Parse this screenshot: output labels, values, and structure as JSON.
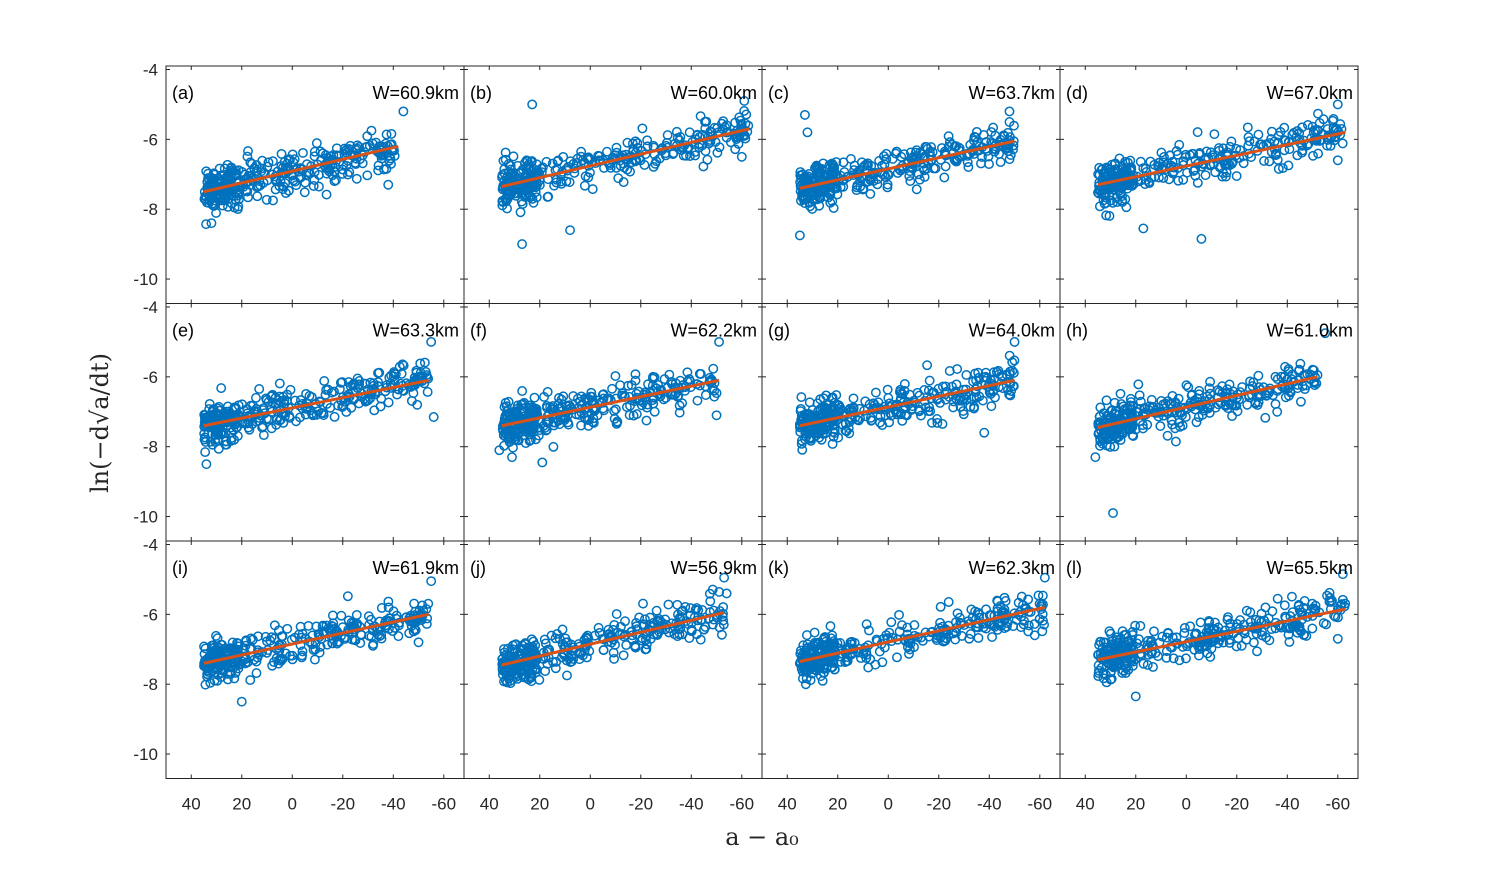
{
  "figure": {
    "ylabel": "ln(−d√a/dt)",
    "xlabel": "a − a₀",
    "colors": {
      "marker": "#0072BD",
      "fit": "#D95319",
      "axes": "#262626"
    }
  },
  "chart_data": {
    "type": "scatter",
    "layout": "3 rows x 4 columns of panels sharing axes",
    "xlim": [
      50,
      -68
    ],
    "xdir": "reverse",
    "ylim": [
      -10.7,
      -3.9
    ],
    "xticks": [
      40,
      20,
      0,
      -20,
      -40,
      -60
    ],
    "xtick_labels": [
      "40",
      "20",
      "0",
      "-20",
      "-40",
      "-60"
    ],
    "yticks": [
      -4,
      -6,
      -8,
      -10
    ],
    "ytick_labels": [
      "-4",
      "-6",
      "-8",
      "-10"
    ],
    "xlabel": "a − a₀",
    "ylabel": "ln(−d√a/dt)",
    "marker": "open circle",
    "grid": false,
    "panels": [
      {
        "label": "(a)",
        "width_label": "W=60.9km",
        "x_range": [
          35,
          -42
        ],
        "fit": [
          [
            35,
            -7.5
          ],
          [
            -42,
            -6.2
          ]
        ],
        "outliers": [
          [
            32,
            -8.4
          ],
          [
            -44,
            -5.2
          ],
          [
            -38,
            -7.3
          ]
        ]
      },
      {
        "label": "(b)",
        "width_label": "W=60.0km",
        "x_range": [
          35,
          -63
        ],
        "fit": [
          [
            35,
            -7.35
          ],
          [
            -63,
            -5.7
          ]
        ],
        "outliers": [
          [
            23,
            -5.0
          ],
          [
            27,
            -9.0
          ],
          [
            8,
            -8.6
          ],
          [
            -61,
            -4.9
          ],
          [
            -60,
            -6.5
          ]
        ]
      },
      {
        "label": "(c)",
        "width_label": "W=63.7km",
        "x_range": [
          35,
          -50
        ],
        "fit": [
          [
            35,
            -7.4
          ],
          [
            -50,
            -6.05
          ]
        ],
        "outliers": [
          [
            35,
            -8.75
          ],
          [
            33,
            -5.3
          ],
          [
            32,
            -5.8
          ],
          [
            -48,
            -5.2
          ]
        ]
      },
      {
        "label": "(d)",
        "width_label": "W=67.0km",
        "x_range": [
          35,
          -63
        ],
        "fit": [
          [
            35,
            -7.3
          ],
          [
            -63,
            -5.8
          ]
        ],
        "outliers": [
          [
            17,
            -8.55
          ],
          [
            -6,
            -8.85
          ],
          [
            -60,
            -5.0
          ],
          [
            -60,
            -6.6
          ]
        ]
      },
      {
        "label": "(e)",
        "width_label": "W=63.3km",
        "x_range": [
          35,
          -54
        ],
        "fit": [
          [
            35,
            -7.4
          ],
          [
            -54,
            -6.1
          ]
        ],
        "outliers": [
          [
            34,
            -8.5
          ],
          [
            -55,
            -5.0
          ],
          [
            -56,
            -7.15
          ]
        ]
      },
      {
        "label": "(f)",
        "width_label": "W=62.2km",
        "x_range": [
          35,
          -51
        ],
        "fit": [
          [
            35,
            -7.4
          ],
          [
            -51,
            -6.1
          ]
        ],
        "outliers": [
          [
            36,
            -8.1
          ],
          [
            31,
            -8.3
          ],
          [
            19,
            -8.45
          ],
          [
            -51,
            -5.0
          ],
          [
            -50,
            -7.1
          ]
        ]
      },
      {
        "label": "(g)",
        "width_label": "W=64.0km",
        "x_range": [
          35,
          -50
        ],
        "fit": [
          [
            35,
            -7.4
          ],
          [
            -50,
            -6.1
          ]
        ],
        "outliers": [
          [
            -50,
            -5.0
          ],
          [
            -38,
            -7.6
          ]
        ]
      },
      {
        "label": "(h)",
        "width_label": "W=61.0km",
        "x_range": [
          35,
          -52
        ],
        "fit": [
          [
            35,
            -7.45
          ],
          [
            -52,
            -6.0
          ]
        ],
        "outliers": [
          [
            36,
            -8.3
          ],
          [
            29,
            -9.9
          ],
          [
            -55,
            -4.75
          ],
          [
            -36,
            -7.0
          ]
        ]
      },
      {
        "label": "(i)",
        "width_label": "W=61.9km",
        "x_range": [
          35,
          -54
        ],
        "fit": [
          [
            35,
            -7.4
          ],
          [
            -54,
            -6.0
          ]
        ],
        "outliers": [
          [
            20,
            -8.5
          ],
          [
            -55,
            -5.05
          ],
          [
            -50,
            -6.8
          ]
        ]
      },
      {
        "label": "(j)",
        "width_label": "W=56.9km",
        "x_range": [
          35,
          -53
        ],
        "fit": [
          [
            35,
            -7.45
          ],
          [
            -53,
            -5.95
          ]
        ],
        "outliers": [
          [
            -53,
            -4.95
          ],
          [
            -54,
            -5.4
          ]
        ]
      },
      {
        "label": "(k)",
        "width_label": "W=62.3km",
        "x_range": [
          35,
          -62
        ],
        "fit": [
          [
            35,
            -7.35
          ],
          [
            -62,
            -5.8
          ]
        ],
        "outliers": [
          [
            -62,
            -4.95
          ],
          [
            -58,
            -6.6
          ]
        ]
      },
      {
        "label": "(l)",
        "width_label": "W=65.5km",
        "x_range": [
          35,
          -63
        ],
        "fit": [
          [
            35,
            -7.3
          ],
          [
            -63,
            -5.85
          ]
        ],
        "outliers": [
          [
            20,
            -8.35
          ],
          [
            -62,
            -4.85
          ],
          [
            -60,
            -6.7
          ]
        ]
      }
    ]
  }
}
